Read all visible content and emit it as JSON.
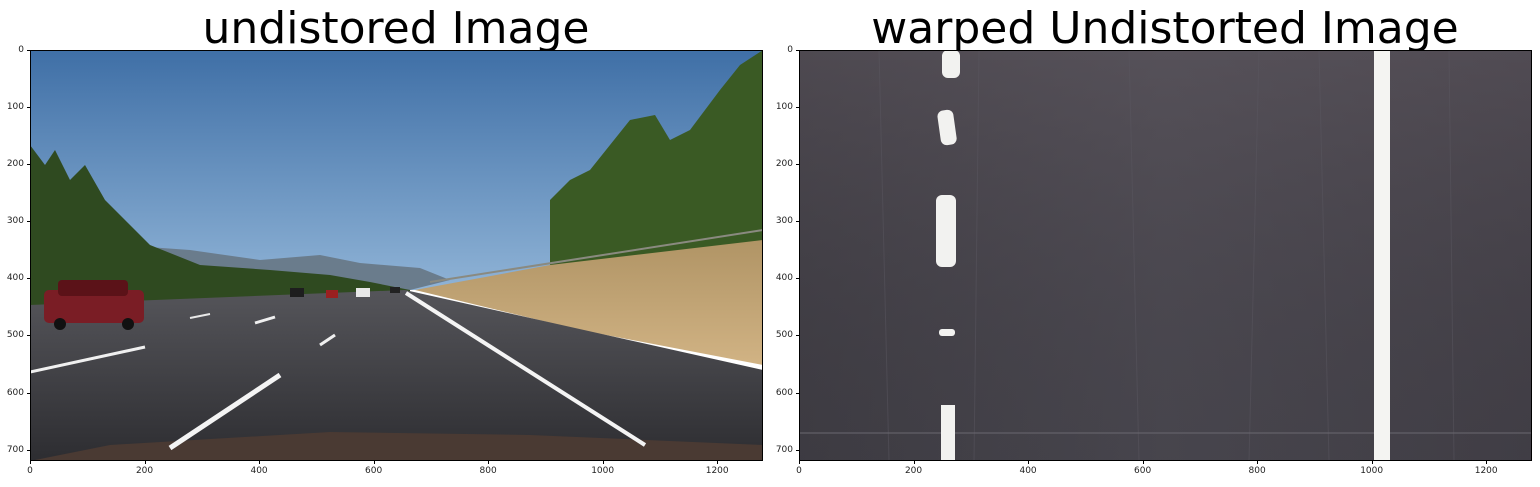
{
  "figures": [
    {
      "title": "undistored Image",
      "x_ticks": [
        "0",
        "200",
        "400",
        "600",
        "800",
        "1000",
        "1200"
      ],
      "y_ticks": [
        "0",
        "100",
        "200",
        "300",
        "400",
        "500",
        "600",
        "700"
      ],
      "image": {
        "description_icon": "road-photo",
        "colors": {
          "sky": "#4a7fb5",
          "road": "#3a3a3e",
          "trees": "#3d5a25",
          "grass": "#c4a574",
          "lane": "#f4f4f4",
          "car": "#7a1d25"
        }
      }
    },
    {
      "title": "warped Undistorted Image",
      "x_ticks": [
        "0",
        "200",
        "400",
        "600",
        "800",
        "1000",
        "1200"
      ],
      "y_ticks": [
        "0",
        "100",
        "200",
        "300",
        "400",
        "500",
        "600",
        "700"
      ],
      "image": {
        "description_icon": "warped-road-icon",
        "colors": {
          "road": "#4a4850",
          "lane": "#f2f2f0"
        }
      }
    }
  ]
}
